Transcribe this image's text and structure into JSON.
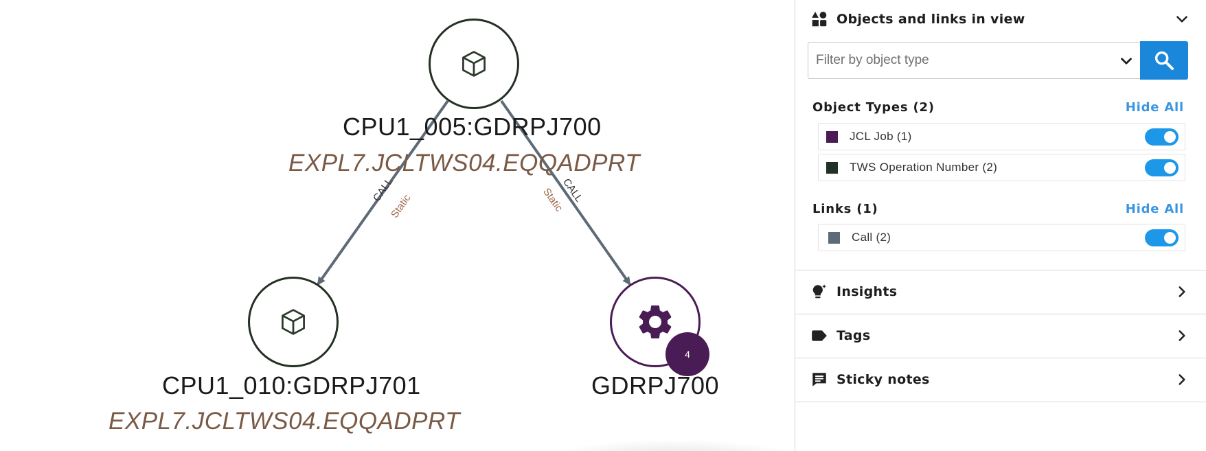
{
  "graph": {
    "nodes": [
      {
        "id": "top",
        "label": "CPU1_005:GDRPJ700",
        "sublabel": "EXPL7.JCLTWS04.EQQADPRT",
        "icon": "cube-icon"
      },
      {
        "id": "left",
        "label": "CPU1_010:GDRPJ701",
        "sublabel": "EXPL7.JCLTWS04.EQQADPRT",
        "icon": "cube-icon"
      },
      {
        "id": "right",
        "label": "GDRPJ700",
        "icon": "gear-icon",
        "badge": "4"
      }
    ],
    "edges": [
      {
        "from": "top",
        "to": "left",
        "type_label": "CALL",
        "mode_label": "Static"
      },
      {
        "from": "top",
        "to": "right",
        "type_label": "CALL",
        "mode_label": "Static"
      }
    ]
  },
  "panel": {
    "objects_section": {
      "title": "Objects and links in view",
      "filter_placeholder": "Filter by object type",
      "object_types": {
        "title": "Object Types (2)",
        "hide_all": "Hide All",
        "items": [
          {
            "label": "JCL Job (1)",
            "color": "#4a1c55",
            "enabled": true
          },
          {
            "label": "TWS Operation Number (2)",
            "color": "#243023",
            "enabled": true
          }
        ]
      },
      "links": {
        "title": "Links (1)",
        "hide_all": "Hide All",
        "items": [
          {
            "label": "Call (2)",
            "color": "#5e6a77",
            "enabled": true
          }
        ]
      }
    },
    "insights": {
      "title": "Insights"
    },
    "tags": {
      "title": "Tags"
    },
    "sticky_notes": {
      "title": "Sticky notes"
    }
  },
  "colors": {
    "edge": "#5e6a77",
    "accent": "#1a87db",
    "toggle_on": "#1d97e8",
    "link_text": "#3a95e3"
  }
}
